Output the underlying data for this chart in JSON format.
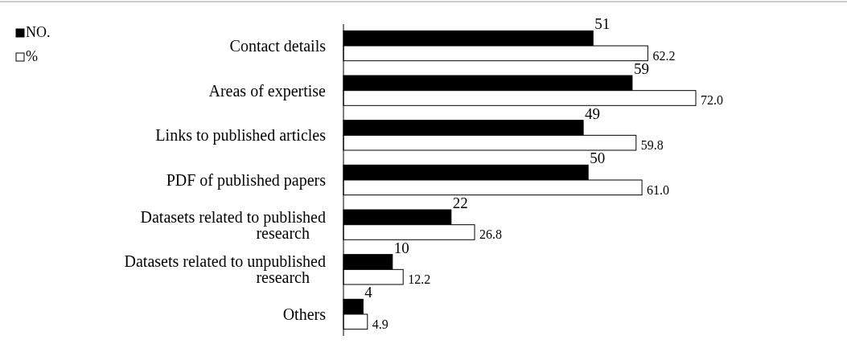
{
  "chart_data": {
    "type": "bar",
    "orientation": "horizontal",
    "categories": [
      "Contact details",
      "Areas of expertise",
      "Links to published articles",
      "PDF of published papers",
      "Datasets related to published research",
      "Datasets related to unpublished research",
      "Others"
    ],
    "series": [
      {
        "name": "NO.",
        "color": "#000000",
        "values": [
          51,
          59,
          49,
          50,
          22,
          10,
          4
        ]
      },
      {
        "name": "%",
        "color": "#ffffff",
        "values": [
          62.2,
          72.0,
          59.8,
          61.0,
          26.8,
          12.2,
          4.9
        ],
        "value_labels": [
          "62.2",
          "72.0",
          "59.8",
          "61.0",
          "26.8",
          "12.2",
          "4.9"
        ]
      }
    ],
    "data_labels": true,
    "legend": "top left"
  }
}
